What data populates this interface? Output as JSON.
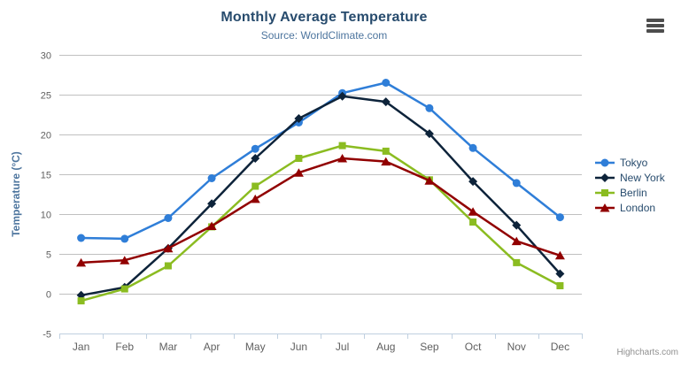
{
  "title": "Monthly Average Temperature",
  "subtitle": "Source: WorldClimate.com",
  "credit": "Highcharts.com",
  "context_menu": {
    "icon": "hamburger-menu-icon"
  },
  "chart_data": {
    "type": "line",
    "title": "Monthly Average Temperature",
    "subtitle": "Source: WorldClimate.com",
    "categories": [
      "Jan",
      "Feb",
      "Mar",
      "Apr",
      "May",
      "Jun",
      "Jul",
      "Aug",
      "Sep",
      "Oct",
      "Nov",
      "Dec"
    ],
    "xlabel": "",
    "ylabel": "Temperature (°C)",
    "ylim": [
      -5,
      30
    ],
    "yticks": [
      -5,
      0,
      5,
      10,
      15,
      20,
      25,
      30
    ],
    "grid": true,
    "legend_position": "right",
    "colors": {
      "grid": "#C0C0C0",
      "axis_line": "#C0D0E0",
      "axis_label": "#606060",
      "title": "#274b6d",
      "subtitle": "#4d759e",
      "legend_text": "#274b6d"
    },
    "series": [
      {
        "name": "Tokyo",
        "color": "#2f7ed8",
        "marker": "circle",
        "values": [
          7.0,
          6.9,
          9.5,
          14.5,
          18.2,
          21.5,
          25.2,
          26.5,
          23.3,
          18.3,
          13.9,
          9.6
        ]
      },
      {
        "name": "New York",
        "color": "#0d233a",
        "marker": "diamond",
        "values": [
          -0.2,
          0.8,
          5.7,
          11.3,
          17.0,
          22.0,
          24.8,
          24.1,
          20.1,
          14.1,
          8.6,
          2.5
        ]
      },
      {
        "name": "Berlin",
        "color": "#8bbc21",
        "marker": "square",
        "values": [
          -0.9,
          0.6,
          3.5,
          8.4,
          13.5,
          17.0,
          18.6,
          17.9,
          14.3,
          9.0,
          3.9,
          1.0
        ]
      },
      {
        "name": "London",
        "color": "#910000",
        "marker": "triangle",
        "values": [
          3.9,
          4.2,
          5.7,
          8.5,
          11.9,
          15.2,
          17.0,
          16.6,
          14.2,
          10.3,
          6.6,
          4.8
        ]
      }
    ]
  }
}
